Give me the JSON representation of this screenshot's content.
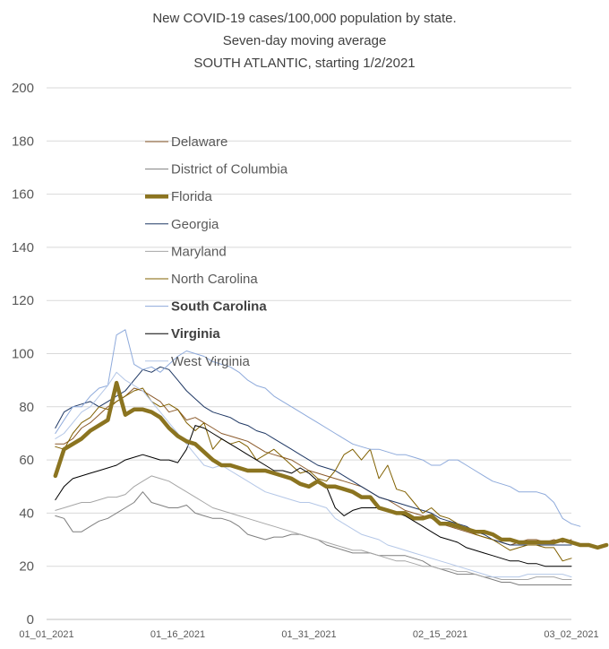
{
  "chart_data": {
    "type": "line",
    "title_lines": [
      "New COVID-19 cases/100,000 population by state.",
      "Seven-day moving average",
      "SOUTH ATLANTIC, starting 1/2/2021"
    ],
    "xlabel": "",
    "ylabel": "",
    "ylim": [
      0,
      200
    ],
    "yticks": [
      0,
      20,
      40,
      60,
      80,
      100,
      120,
      140,
      160,
      180,
      200
    ],
    "x_start": 1,
    "x_end": 61,
    "x_tick_labels": [
      {
        "day": 1,
        "label": "01_01_2021"
      },
      {
        "day": 16,
        "label": "01_16_2021"
      },
      {
        "day": 31,
        "label": "01_31_2021"
      },
      {
        "day": 46,
        "label": "02_15_2021"
      },
      {
        "day": 61,
        "label": "03_02_2021"
      }
    ],
    "grid": true,
    "legend_position": "center-left",
    "series": [
      {
        "name": "Delaware",
        "color": "#8b5a2b",
        "width": 1,
        "bold_label": false,
        "x_start": 2,
        "values": [
          66,
          66,
          68,
          72,
          74,
          77,
          80,
          82,
          84,
          87,
          86,
          84,
          82,
          78,
          79,
          75,
          76,
          74,
          72,
          70,
          69,
          68,
          67,
          65,
          63,
          62,
          61,
          60,
          58,
          56,
          55,
          54,
          53,
          52,
          51,
          50,
          48,
          46,
          45,
          43,
          41,
          40,
          39,
          38,
          36,
          35,
          34,
          33,
          32,
          31,
          30,
          29,
          28,
          29,
          30,
          30,
          29,
          30,
          29,
          30
        ]
      },
      {
        "name": "District of Columbia",
        "color": "#7f7f7f",
        "width": 1,
        "bold_label": false,
        "x_start": 2,
        "values": [
          39,
          38,
          33,
          33,
          35,
          37,
          38,
          40,
          42,
          44,
          48,
          44,
          43,
          42,
          42,
          43,
          40,
          39,
          38,
          38,
          37,
          35,
          32,
          31,
          30,
          31,
          31,
          32,
          32,
          31,
          30,
          28,
          27,
          26,
          25,
          25,
          25,
          24,
          24,
          24,
          24,
          23,
          22,
          20,
          19,
          18,
          17,
          17,
          17,
          16,
          15,
          14,
          14,
          13,
          13,
          13,
          13,
          13,
          13,
          13
        ]
      },
      {
        "name": "Florida",
        "color": "#8b7420",
        "width": 4.5,
        "bold_label": false,
        "x_start": 2,
        "values": [
          54,
          64,
          66,
          68,
          71,
          73,
          75,
          89,
          77,
          79,
          79,
          78,
          76,
          72,
          69,
          67,
          66,
          63,
          60,
          58,
          58,
          57,
          56,
          56,
          56,
          55,
          54,
          53,
          51,
          50,
          52,
          50,
          50,
          49,
          48,
          46,
          46,
          42,
          41,
          40,
          40,
          38,
          38,
          39,
          36,
          36,
          35,
          34,
          33,
          33,
          32,
          30,
          30,
          29,
          29,
          29,
          29,
          29,
          30,
          29,
          28,
          28,
          27,
          28
        ]
      },
      {
        "name": "Georgia",
        "color": "#1f3864",
        "width": 1,
        "bold_label": false,
        "x_start": 2,
        "values": [
          72,
          78,
          80,
          81,
          82,
          80,
          82,
          84,
          86,
          90,
          94,
          93,
          95,
          94,
          90,
          86,
          83,
          80,
          78,
          77,
          76,
          74,
          73,
          71,
          70,
          68,
          66,
          64,
          62,
          60,
          58,
          57,
          56,
          54,
          52,
          50,
          48,
          46,
          45,
          44,
          43,
          42,
          41,
          40,
          38,
          37,
          36,
          35,
          33,
          32,
          30,
          29,
          28,
          28,
          28,
          28,
          28,
          28,
          28,
          28
        ]
      },
      {
        "name": "Maryland",
        "color": "#a6a6a6",
        "width": 1,
        "bold_label": false,
        "x_start": 2,
        "values": [
          41,
          42,
          43,
          44,
          44,
          45,
          46,
          46,
          47,
          50,
          52,
          54,
          53,
          52,
          50,
          48,
          46,
          44,
          42,
          41,
          40,
          39,
          38,
          37,
          36,
          35,
          34,
          33,
          32,
          31,
          30,
          29,
          28,
          27,
          26,
          26,
          25,
          24,
          23,
          22,
          22,
          21,
          20,
          20,
          19,
          19,
          18,
          18,
          17,
          16,
          16,
          15,
          15,
          15,
          15,
          16,
          16,
          16,
          15,
          15
        ]
      },
      {
        "name": "North Carolina",
        "color": "#806000",
        "width": 1,
        "bold_label": false,
        "x_start": 2,
        "values": [
          65,
          64,
          70,
          74,
          76,
          80,
          79,
          82,
          84,
          86,
          87,
          82,
          80,
          81,
          79,
          74,
          71,
          74,
          64,
          68,
          66,
          67,
          65,
          60,
          62,
          64,
          61,
          58,
          55,
          56,
          53,
          52,
          56,
          62,
          64,
          60,
          64,
          53,
          58,
          49,
          48,
          44,
          40,
          42,
          39,
          38,
          36,
          34,
          32,
          31,
          30,
          28,
          26,
          27,
          28,
          28,
          27,
          27,
          22,
          23
        ]
      },
      {
        "name": "South Carolina",
        "color": "#8eaadb",
        "width": 1,
        "bold_label": false,
        "x_start": 2,
        "values": [
          70,
          75,
          80,
          80,
          84,
          87,
          88,
          107,
          109,
          96,
          94,
          95,
          93,
          96,
          99,
          101,
          100,
          99,
          97,
          96,
          95,
          93,
          90,
          88,
          87,
          84,
          82,
          80,
          78,
          76,
          74,
          72,
          70,
          68,
          66,
          65,
          64,
          64,
          63,
          62,
          62,
          61,
          60,
          58,
          58,
          60,
          60,
          58,
          56,
          54,
          52,
          51,
          50,
          48,
          48,
          48,
          47,
          44,
          38,
          36,
          35
        ]
      },
      {
        "name": "Virginia",
        "color": "#000000",
        "width": 1,
        "bold_label": false,
        "x_start": 2,
        "values": [
          45,
          50,
          53,
          54,
          55,
          56,
          57,
          58,
          60,
          61,
          62,
          61,
          60,
          60,
          59,
          64,
          73,
          72,
          70,
          68,
          66,
          64,
          62,
          60,
          58,
          56,
          56,
          55,
          57,
          55,
          52,
          50,
          42,
          39,
          41,
          42,
          42,
          42,
          41,
          40,
          39,
          37,
          35,
          33,
          31,
          30,
          29,
          27,
          26,
          25,
          24,
          23,
          22,
          22,
          21,
          21,
          20,
          20,
          20,
          20
        ]
      },
      {
        "name": "West Virginia",
        "color": "#b4c7e7",
        "width": 1,
        "bold_label": false,
        "x_start": 2,
        "values": [
          68,
          70,
          74,
          78,
          80,
          84,
          88,
          93,
          90,
          88,
          86,
          82,
          78,
          74,
          70,
          66,
          62,
          58,
          57,
          58,
          56,
          54,
          52,
          50,
          48,
          47,
          46,
          45,
          44,
          44,
          43,
          42,
          38,
          36,
          34,
          32,
          31,
          30,
          28,
          27,
          26,
          25,
          24,
          23,
          22,
          21,
          20,
          19,
          18,
          17,
          16,
          16,
          16,
          16,
          17,
          17,
          17,
          17,
          17,
          16
        ]
      }
    ],
    "legend_bold": [
      "South Carolina",
      "Virginia"
    ]
  }
}
